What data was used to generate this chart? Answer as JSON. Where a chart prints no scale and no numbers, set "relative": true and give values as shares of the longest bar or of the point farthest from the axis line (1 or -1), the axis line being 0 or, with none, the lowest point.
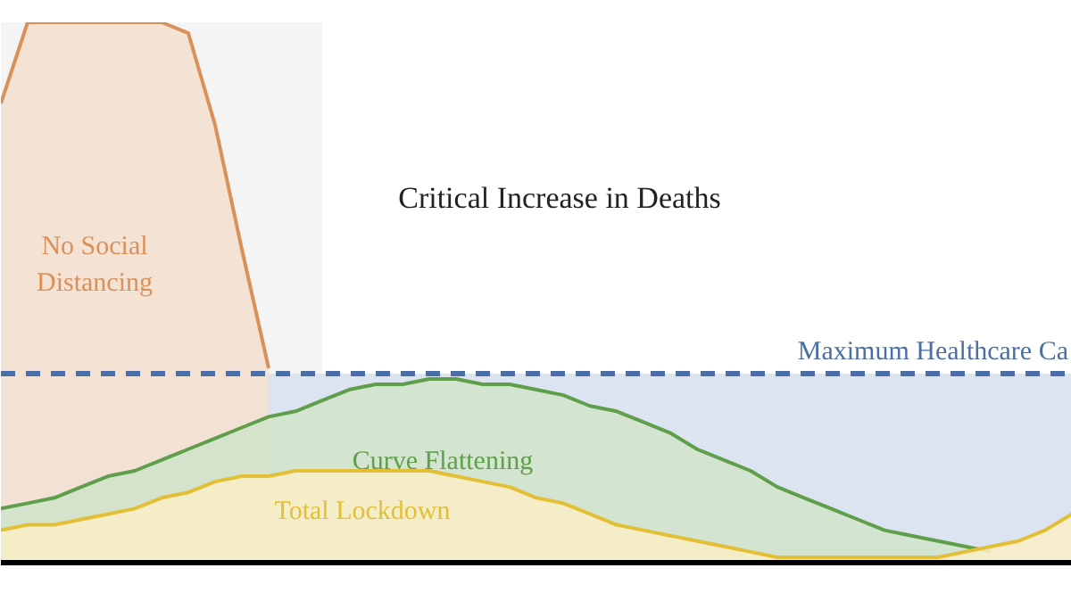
{
  "chart_data": {
    "type": "area",
    "relative": true,
    "categories": [
      null,
      null,
      null,
      null,
      null,
      null,
      null,
      null,
      null,
      null,
      null,
      null,
      null,
      null,
      null,
      null,
      null,
      null,
      null,
      null,
      null,
      null,
      null,
      null,
      null,
      null,
      null,
      null,
      null,
      null,
      null,
      null,
      null,
      null,
      null,
      null,
      null,
      null,
      null,
      null,
      null
    ],
    "series": [
      {
        "name": "No Social Distancing",
        "color": "#d9915a",
        "values": [
          0.85,
          1,
          1,
          1,
          1,
          1,
          1,
          0.98,
          0.81,
          0.58,
          0.36,
          null,
          null,
          null,
          null,
          null,
          null,
          null,
          null,
          null,
          null,
          null,
          null,
          null,
          null,
          null,
          null,
          null,
          null,
          null,
          null,
          null,
          null,
          null,
          null,
          null,
          null,
          null,
          null,
          null,
          null
        ]
      },
      {
        "name": "Curve Flattening",
        "color": "#5f9e4a",
        "values": [
          0.1,
          0.11,
          0.12,
          0.14,
          0.16,
          0.17,
          0.19,
          0.21,
          0.23,
          0.25,
          0.27,
          0.28,
          0.3,
          0.32,
          0.33,
          0.33,
          0.34,
          0.34,
          0.33,
          0.33,
          0.32,
          0.31,
          0.29,
          0.28,
          0.26,
          0.24,
          0.21,
          0.19,
          0.17,
          0.14,
          0.12,
          0.1,
          0.08,
          0.06,
          0.05,
          0.04,
          0.03,
          0.02,
          null,
          null,
          null
        ]
      },
      {
        "name": "Total Lockdown",
        "color": "#e3bf35",
        "values": [
          0.06,
          0.07,
          0.07,
          0.08,
          0.09,
          0.1,
          0.12,
          0.13,
          0.15,
          0.16,
          0.16,
          0.17,
          0.17,
          0.17,
          0.17,
          0.17,
          0.17,
          0.16,
          0.15,
          0.14,
          0.12,
          0.11,
          0.09,
          0.07,
          0.06,
          0.05,
          0.04,
          0.03,
          0.02,
          0.01,
          0.01,
          0.01,
          0.01,
          0.01,
          0.01,
          0.01,
          0.02,
          0.03,
          0.04,
          0.06,
          0.09
        ]
      }
    ],
    "ref_lines": [
      {
        "axis": "y",
        "value": 0.35,
        "label": "Maximum Healthcare Ca",
        "color": "#4a6fa8",
        "line_style": "dashed"
      }
    ],
    "bands": [
      {
        "axis": "y",
        "from": 0,
        "to": 0.35,
        "color": "#dce3f1"
      }
    ],
    "annotations": [
      "Critical Increase in Deaths"
    ]
  }
}
